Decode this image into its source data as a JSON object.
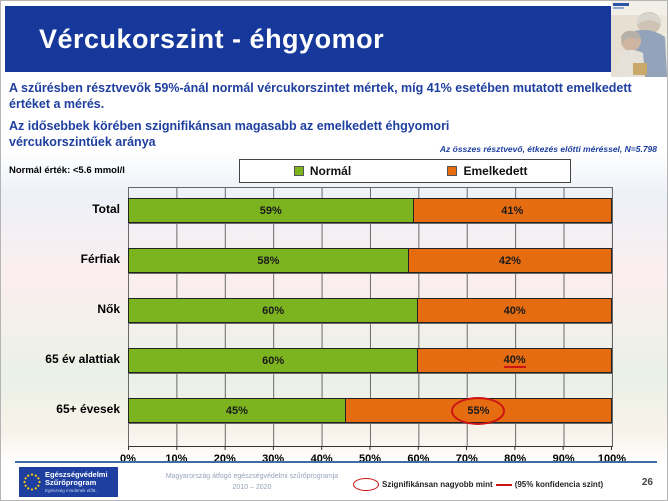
{
  "slide": {
    "title": "Vércukorszint - éhgyomor",
    "page_number": "26"
  },
  "intro": {
    "paragraph1": "A szűrésben résztvevők 59%-ánál normál vércukorszintet mértek, míg 41% esetében mutatott emelkedett értéket a mérés.",
    "paragraph2": "Az idősebbek körében szignifikánsan magasabb az emelkedett éhgyomori vércukorszintűek aránya",
    "sample_note": "Az összes résztvevő, étkezés előtti méréssel, N=5.798",
    "normal_range": "Normál érték: <5.6 mmol/l"
  },
  "chart_data": {
    "type": "bar",
    "orientation": "horizontal",
    "stacked": true,
    "categories": [
      "Total",
      "Férfiak",
      "Nők",
      "65 év alattiak",
      "65+ évesek"
    ],
    "series": [
      {
        "name": "Normál",
        "color": "#7cb41f",
        "values": [
          59,
          58,
          60,
          60,
          45
        ]
      },
      {
        "name": "Emelkedett",
        "color": "#e56c10",
        "values": [
          41,
          42,
          40,
          40,
          55
        ]
      }
    ],
    "x_ticks": [
      "0%",
      "10%",
      "20%",
      "30%",
      "40%",
      "50%",
      "60%",
      "70%",
      "80%",
      "90%",
      "100%"
    ],
    "xlim": [
      0,
      100
    ],
    "grid": true,
    "legend_position": "top",
    "annotations": [
      {
        "category_index": 3,
        "series_index": 1,
        "style": "red-underline"
      },
      {
        "category_index": 4,
        "series_index": 1,
        "style": "red-ellipse"
      }
    ]
  },
  "footer": {
    "logo_line1": "Egészségvédelmi",
    "logo_line2": "Szűrőprogram",
    "logo_line3": "Egészség mindenek előtt..",
    "program_line1": "Magyarország átfogó egészségvédelmi szűrőprogramja",
    "program_line2": "2010 – 2020",
    "significance_label": "Szignifikánsan nagyobb mint",
    "confidence_label": "(95% konfidencia szint)"
  },
  "colors": {
    "title_bar": "#16389b",
    "text_blue": "#1e3fa0",
    "normal_green": "#7cb41f",
    "elevated_orange": "#e56c10",
    "annotation_red": "#cc1414",
    "footer_line_blue": "#3a6ea5"
  }
}
